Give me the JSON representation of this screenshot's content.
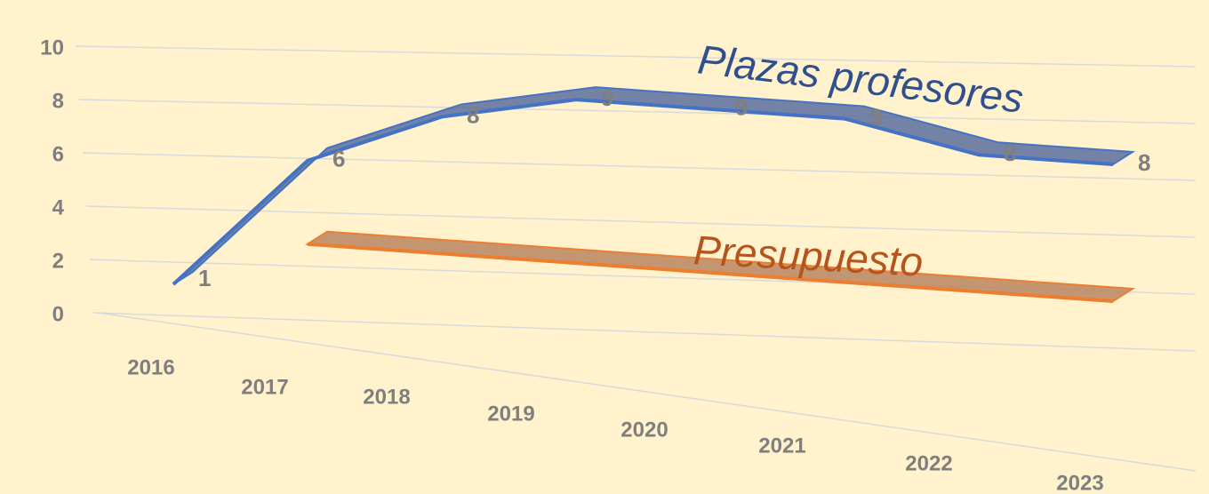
{
  "chart_data": {
    "type": "line3d",
    "categories": [
      "2016",
      "2017",
      "2018",
      "2019",
      "2020",
      "2021",
      "2022",
      "2023"
    ],
    "series": [
      {
        "name": "Plazas profesores",
        "color": "#4472c4",
        "values": [
          1,
          6,
          8,
          9,
          9,
          9,
          8,
          8
        ]
      },
      {
        "name": "Presupuesto",
        "color": "#ed7d31",
        "values": [
          null,
          1,
          1,
          1,
          1,
          1,
          1,
          1
        ]
      }
    ],
    "ylim": [
      0,
      10
    ],
    "yticks": [
      0,
      2,
      4,
      6,
      8,
      10
    ],
    "grid": true,
    "data_labels": [
      true,
      false
    ]
  }
}
